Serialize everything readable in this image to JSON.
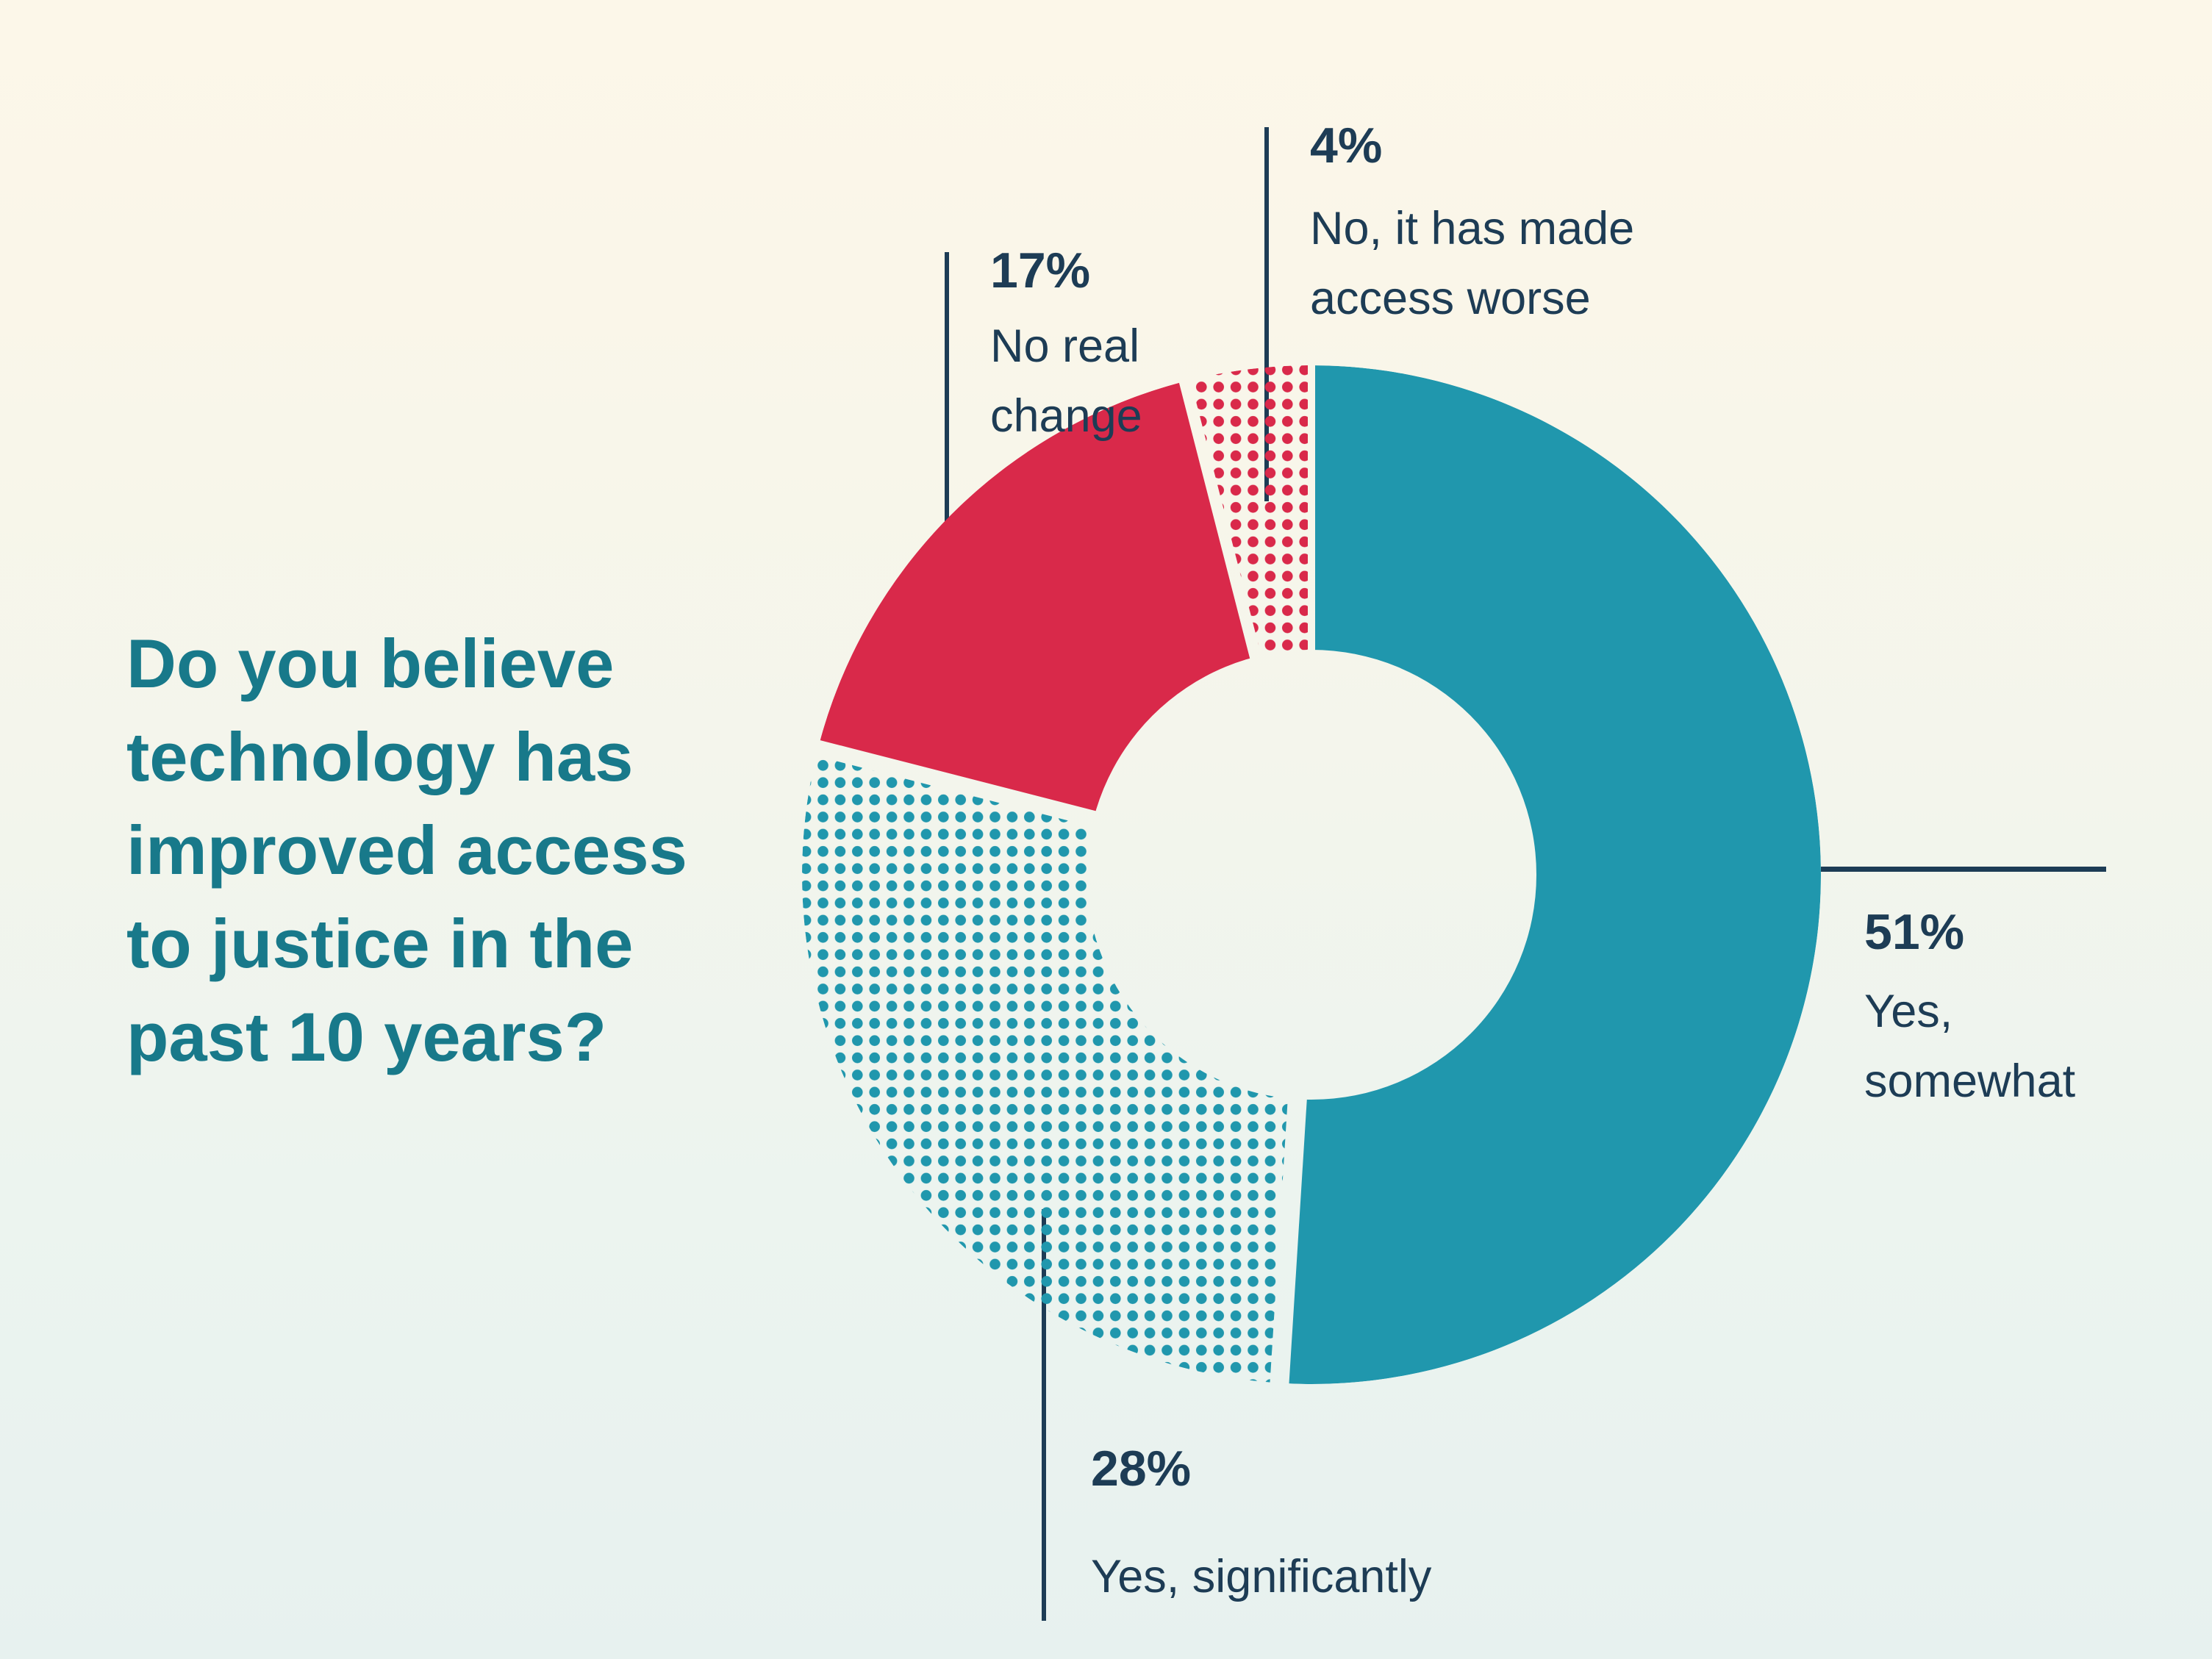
{
  "question": {
    "text": "Do you believe technology has improved access to justice in the past 10 years?",
    "lines": [
      "Do you believe",
      "technology has",
      "improved access",
      "to justice in the",
      "past 10 years?"
    ]
  },
  "chart_data": {
    "type": "pie",
    "variant": "donut",
    "title": "Do you believe technology has improved access to justice in the past 10 years?",
    "unit": "%",
    "direction": "clockwise",
    "start_angle_deg": 0,
    "legend": "none",
    "segments": [
      {
        "label": "Yes, somewhat",
        "value": 51,
        "color": "#2097AD",
        "pattern": "solid"
      },
      {
        "label": "Yes, significantly",
        "value": 28,
        "color": "#2097AD",
        "pattern": "halftone-dots"
      },
      {
        "label": "No real change",
        "value": 17,
        "color": "#D9294A",
        "pattern": "solid"
      },
      {
        "label": "No, it has made access worse",
        "value": 4,
        "color": "#D9294A",
        "pattern": "halftone-dots"
      }
    ]
  },
  "callouts": [
    {
      "pct": "4%",
      "lines": [
        "No, it has made",
        "access worse"
      ]
    },
    {
      "pct": "17%",
      "lines": [
        "No real",
        "change"
      ]
    },
    {
      "pct": "51%",
      "lines": [
        "Yes,",
        "somewhat"
      ]
    },
    {
      "pct": "28%",
      "lines": [
        "Yes, significantly"
      ]
    }
  ],
  "colors": {
    "background_top": "#FCF7E9",
    "background_bottom": "#E7F1EF",
    "teal": "#2097AD",
    "red": "#D9294A",
    "label_navy": "#1D3C55",
    "question_teal": "#18798A"
  }
}
